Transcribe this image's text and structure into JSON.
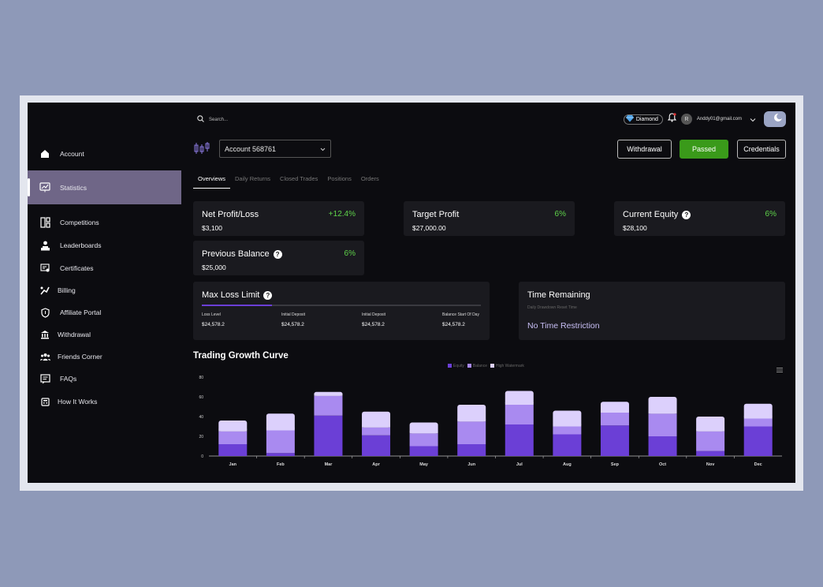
{
  "sidebar": {
    "items": [
      {
        "label": "Account",
        "icon": "home-icon"
      },
      {
        "label": "Statistics",
        "icon": "presentation-chart-icon"
      },
      {
        "label": "Competitions",
        "icon": "layout-icon"
      },
      {
        "label": "Leaderboards",
        "icon": "podium-user-icon"
      },
      {
        "label": "Certificates",
        "icon": "certificate-icon"
      },
      {
        "label": "Billing",
        "icon": "chart-line-icon"
      },
      {
        "label": "Affiliate Portal",
        "icon": "shield-icon"
      },
      {
        "label": "Withdrawal",
        "icon": "bank-icon"
      },
      {
        "label": "Friends Corner",
        "icon": "group-icon"
      },
      {
        "label": "FAQs",
        "icon": "faq-icon"
      },
      {
        "label": "How It Works",
        "icon": "calculator-icon"
      }
    ],
    "active": "Statistics"
  },
  "header": {
    "search_placeholder": "Search...",
    "tier": "Diamond",
    "avatar_initial": "R",
    "email": "Anddy01@gmail.com"
  },
  "account": {
    "selected": "Account 568761",
    "buttons": {
      "withdrawal": "Withdrawal",
      "passed": "Passed",
      "credentials": "Credentials"
    }
  },
  "tabs": [
    "Overviews",
    "Daily Returns",
    "Closed Trades",
    "Positions",
    "Orders"
  ],
  "cards": {
    "net_profit": {
      "label": "Net Profit/Loss",
      "value": "$3,100",
      "pct": "+12.4%"
    },
    "target_profit": {
      "label": "Target Profit",
      "value": "$27,000.00",
      "pct": "6%"
    },
    "current_equity": {
      "label": "Current Equity",
      "value": "$28,100",
      "pct": "6%"
    },
    "previous_balance": {
      "label": "Previous Balance",
      "value": "$25,000",
      "pct": "6%"
    }
  },
  "max_loss": {
    "label": "Max Loss Limit",
    "progress": 0.25,
    "columns": [
      {
        "label": "Loss Level",
        "value": "$24,578.2"
      },
      {
        "label": "Initial Deposit",
        "value": "$24,578.2"
      },
      {
        "label": "Initial Deposit",
        "value": "$24,578.2"
      },
      {
        "label": "Balance Start Of Day",
        "value": "$24,578.2"
      }
    ]
  },
  "time_remaining": {
    "label": "Time Remaining",
    "sublabel": "Daily Drawdown Reset Time",
    "value": "No Time Restriction"
  },
  "colors": {
    "equity": "#6b3fd6",
    "balance": "#a98af0",
    "high_watermark": "#dcd0fc",
    "accent_green": "#5fd34a",
    "passed_bg": "#3a9a1a"
  },
  "chart_data": {
    "type": "bar",
    "stacked": true,
    "title": "Trading Growth Curve",
    "categories": [
      "Jan",
      "Feb",
      "Mar",
      "Apr",
      "May",
      "Jun",
      "Jul",
      "Aug",
      "Sep",
      "Oct",
      "Nov",
      "Dec"
    ],
    "series": [
      {
        "name": "Equity",
        "values": [
          12,
          3,
          41,
          21,
          10,
          12,
          32,
          22,
          31,
          20,
          5,
          30
        ]
      },
      {
        "name": "Balance",
        "values": [
          13,
          23,
          20,
          8,
          13,
          23,
          20,
          8,
          13,
          23,
          20,
          8
        ]
      },
      {
        "name": "High Watermark",
        "values": [
          11,
          17,
          4,
          16,
          11,
          17,
          14,
          16,
          11,
          17,
          15,
          15
        ]
      }
    ],
    "yticks": [
      0,
      20,
      40,
      60,
      80
    ],
    "ylim": [
      0,
      80
    ],
    "legend_position": "top-center",
    "grid": false
  }
}
